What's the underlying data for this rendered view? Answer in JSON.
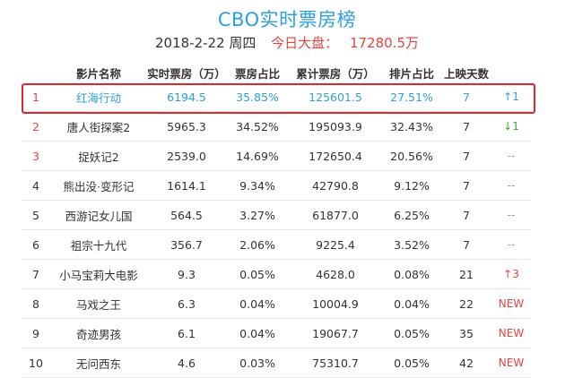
{
  "header": {
    "title": "CBO实时票房榜",
    "date": "2018-2-22 周四",
    "today_label": "今日大盘：",
    "today_value": "17280.5万"
  },
  "table": {
    "columns": [
      "",
      "影片名称",
      "实时票房（万）",
      "票房占比",
      "累计票房（万）",
      "排片占比",
      "上映天数",
      ""
    ],
    "rows": [
      {
        "rank": "1",
        "name": "红海行动",
        "realtime": "6194.5",
        "share": "35.85%",
        "total": "125601.5",
        "schedule": "27.51%",
        "days": "7",
        "change": "↑1",
        "change_type": "up"
      },
      {
        "rank": "2",
        "name": "唐人街探案2",
        "realtime": "5965.3",
        "share": "34.52%",
        "total": "195093.9",
        "schedule": "32.43%",
        "days": "7",
        "change": "↓1",
        "change_type": "down"
      },
      {
        "rank": "3",
        "name": "捉妖记2",
        "realtime": "2539.0",
        "share": "14.69%",
        "total": "172650.4",
        "schedule": "20.56%",
        "days": "7",
        "change": "--",
        "change_type": "same"
      },
      {
        "rank": "4",
        "name": "熊出没·变形记",
        "realtime": "1614.1",
        "share": "9.34%",
        "total": "42790.8",
        "schedule": "9.12%",
        "days": "7",
        "change": "--",
        "change_type": "same"
      },
      {
        "rank": "5",
        "name": "西游记女儿国",
        "realtime": "564.5",
        "share": "3.27%",
        "total": "61877.0",
        "schedule": "6.25%",
        "days": "7",
        "change": "--",
        "change_type": "same"
      },
      {
        "rank": "6",
        "name": "祖宗十九代",
        "realtime": "356.7",
        "share": "2.06%",
        "total": "9225.4",
        "schedule": "3.52%",
        "days": "7",
        "change": "--",
        "change_type": "same"
      },
      {
        "rank": "7",
        "name": "小马宝莉大电影",
        "realtime": "9.3",
        "share": "0.05%",
        "total": "4628.0",
        "schedule": "0.08%",
        "days": "21",
        "change": "↑3",
        "change_type": "up"
      },
      {
        "rank": "8",
        "name": "马戏之王",
        "realtime": "6.3",
        "share": "0.04%",
        "total": "10004.9",
        "schedule": "0.04%",
        "days": "22",
        "change": "NEW",
        "change_type": "new"
      },
      {
        "rank": "9",
        "name": "奇迹男孩",
        "realtime": "6.1",
        "share": "0.04%",
        "total": "19067.7",
        "schedule": "0.05%",
        "days": "35",
        "change": "NEW",
        "change_type": "new"
      },
      {
        "rank": "10",
        "name": "无问西东",
        "realtime": "4.6",
        "share": "0.03%",
        "total": "75310.7",
        "schedule": "0.05%",
        "days": "42",
        "change": "NEW",
        "change_type": "new"
      }
    ]
  },
  "colors": {
    "accent": "#2ba0e0",
    "red": "#e8423d",
    "green": "#3aaa35",
    "highlight_border": "#e0272b"
  }
}
